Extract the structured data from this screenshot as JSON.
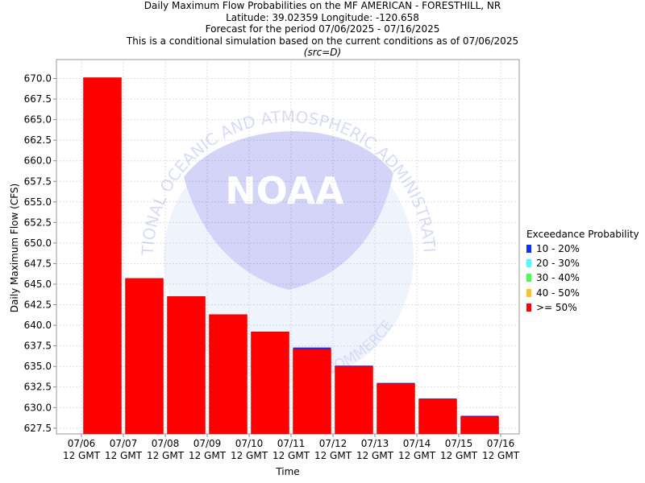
{
  "titles": {
    "line1": "Daily Maximum Flow Probabilities on the MF AMERICAN - FORESTHILL, NR",
    "line2": "Latitude: 39.02359 Longitude: -120.658",
    "line3": "Forecast for the period 07/06/2025 - 07/16/2025",
    "line4": "This is a conditional simulation based on the current conditions as of 07/06/2025",
    "line5": "(src=D)"
  },
  "watermark": {
    "logo_text": "NOAA",
    "ring_text": "NATIONAL OCEANIC AND ATMOSPHERIC ADMINISTRATION",
    "ring_text_bottom": "COMMERCE"
  },
  "legend": {
    "title": "Exceedance Probability",
    "items": [
      {
        "label": "10 - 20%",
        "color": "#1030ff"
      },
      {
        "label": "20 - 30%",
        "color": "#44ffff"
      },
      {
        "label": "30 - 40%",
        "color": "#44ff44"
      },
      {
        "label": "40 - 50%",
        "color": "#ffc020"
      },
      {
        "label": ">= 50%",
        "color": "#ff0000"
      }
    ]
  },
  "chart_data": {
    "type": "bar",
    "title": "Daily Maximum Flow Probabilities on the MF AMERICAN - FORESTHILL, NR",
    "xlabel": "Time",
    "ylabel": "Daily Maximum Flow (CFS)",
    "ylim": [
      626.8,
      672.3
    ],
    "y_ticks": [
      627.5,
      630.0,
      632.5,
      635.0,
      637.5,
      640.0,
      642.5,
      645.0,
      647.5,
      650.0,
      652.5,
      655.0,
      657.5,
      660.0,
      662.5,
      665.0,
      667.5,
      670.0
    ],
    "x_ticks": [
      {
        "date": "07/06",
        "tz": "12 GMT"
      },
      {
        "date": "07/07",
        "tz": "12 GMT"
      },
      {
        "date": "07/08",
        "tz": "12 GMT"
      },
      {
        "date": "07/09",
        "tz": "12 GMT"
      },
      {
        "date": "07/10",
        "tz": "12 GMT"
      },
      {
        "date": "07/11",
        "tz": "12 GMT"
      },
      {
        "date": "07/12",
        "tz": "12 GMT"
      },
      {
        "date": "07/13",
        "tz": "12 GMT"
      },
      {
        "date": "07/14",
        "tz": "12 GMT"
      },
      {
        "date": "07/15",
        "tz": "12 GMT"
      },
      {
        "date": "07/16",
        "tz": "12 GMT"
      }
    ],
    "grid": true,
    "legend_position": "right",
    "series": [
      {
        "name": "10 - 20%",
        "color": "#1030ff",
        "values": [
          670.1,
          645.7,
          643.5,
          641.3,
          639.2,
          637.3,
          635.1,
          633.0,
          631.1,
          629.0
        ]
      },
      {
        "name": "20 - 30%",
        "color": "#44ffff",
        "values": [
          670.1,
          645.7,
          643.5,
          641.3,
          639.2,
          637.1,
          635.0,
          632.9,
          631.0,
          628.9
        ]
      },
      {
        "name": "30 - 40%",
        "color": "#44ff44",
        "values": [
          670.1,
          645.7,
          643.5,
          641.3,
          639.2,
          637.1,
          635.0,
          632.9,
          631.0,
          628.9
        ]
      },
      {
        "name": "40 - 50%",
        "color": "#ffc020",
        "values": [
          670.1,
          645.7,
          643.5,
          641.3,
          639.2,
          637.1,
          635.0,
          632.9,
          631.0,
          628.9
        ]
      },
      {
        "name": ">= 50%",
        "color": "#ff0000",
        "values": [
          670.1,
          645.7,
          643.5,
          641.3,
          639.2,
          637.1,
          635.0,
          632.9,
          631.0,
          628.9
        ]
      }
    ]
  }
}
